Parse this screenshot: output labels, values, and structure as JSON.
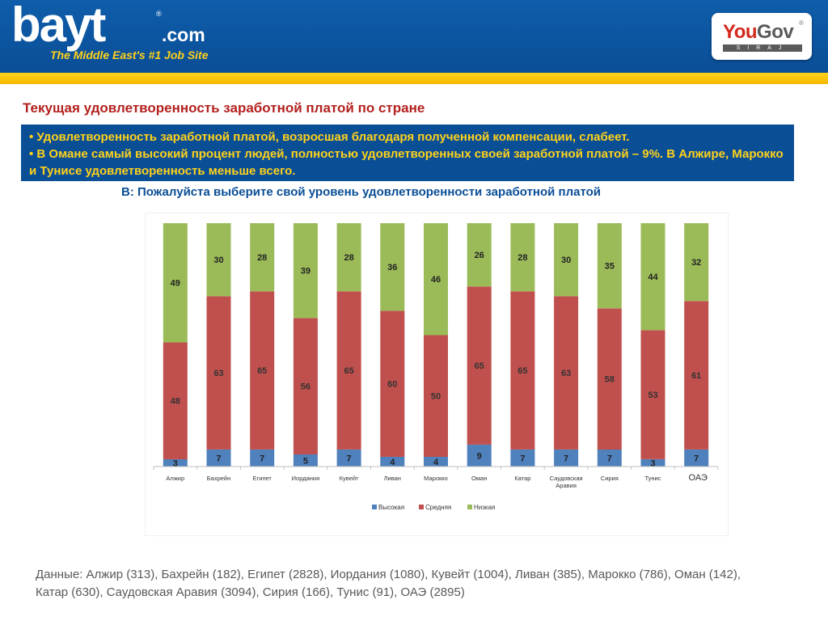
{
  "header": {
    "logo_text": "bayt",
    "logo_domain": ".com",
    "logo_reg": "®",
    "tagline": "The Middle East's #1 Job Site",
    "partner_logo_you": "You",
    "partner_logo_gov": "Gov",
    "partner_logo_reg": "®",
    "partner_logo_sub": "SIRAJ"
  },
  "colors": {
    "header_blue": "#0a4e96",
    "stripe_yellow": "#ffd21a",
    "title_red": "#b3211e",
    "high": "#4f81bd",
    "medium": "#c0504d",
    "low": "#9bbb59"
  },
  "title": "Текущая удовлетворенность заработной платой по стране",
  "summary": {
    "bullet_1": "•  Удовлетворенность заработной платой, возросшая благодаря полученной компенсации, слабеет.",
    "bullet_2": "•  В Омане самый высокий процент людей, полностью удовлетворенных своей заработной платой – 9%. В Алжире, Марокко и Тунисе удовлетворенность меньше всего."
  },
  "question": "В: Пожалуйста выберите свой уровень удовлетворенности заработной платой",
  "chart_data": {
    "type": "bar",
    "stacked": true,
    "percent_stacked": true,
    "categories": [
      "Алжир",
      "Бахрейн",
      "Египет",
      "Иордания",
      "Кувейт",
      "Ливан",
      "Марокко",
      "Оман",
      "Катар",
      "Саудовская Аравия",
      "Сирия",
      "Тунис",
      "ОАЭ"
    ],
    "series": [
      {
        "name": "Высокая",
        "color": "#4f81bd",
        "values": [
          3,
          7,
          7,
          5,
          7,
          4,
          4,
          9,
          7,
          7,
          7,
          3,
          7
        ]
      },
      {
        "name": "Средняя",
        "color": "#c0504d",
        "values": [
          48,
          63,
          65,
          56,
          65,
          60,
          50,
          65,
          65,
          63,
          58,
          53,
          61
        ]
      },
      {
        "name": "Низкая",
        "color": "#9bbb59",
        "values": [
          49,
          30,
          28,
          39,
          28,
          36,
          46,
          26,
          28,
          30,
          35,
          44,
          32
        ]
      }
    ],
    "legend_position": "bottom",
    "grid": false,
    "ylim": [
      0,
      100
    ]
  },
  "footnote": {
    "line_1": "Данные: Алжир (313), Бахрейн (182), Египет (2828), Иордания (1080), Кувейт (1004), Ливан  (385), Марокко (786), Оман (142),",
    "line_2": "Катар (630), Саудовская Аравия (3094), Сирия (166), Тунис (91), ОАЭ (2895)"
  }
}
